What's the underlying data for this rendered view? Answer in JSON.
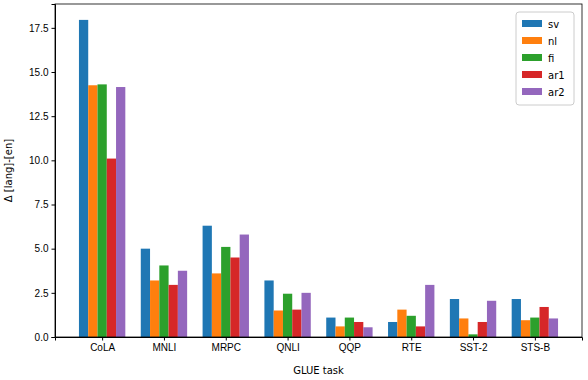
{
  "chart_data": {
    "type": "bar",
    "x_label": "GLUE task",
    "y_label": "Δ [lang]-[en]",
    "categories": [
      "CoLA",
      "MNLI",
      "MRPC",
      "QNLI",
      "QQP",
      "RTE",
      "SST-2",
      "STS-B"
    ],
    "series": [
      {
        "name": "sv",
        "color": "#1f77b4",
        "values": [
          17.95,
          5.0,
          6.3,
          3.2,
          1.1,
          0.85,
          2.15,
          2.15
        ]
      },
      {
        "name": "nl",
        "color": "#ff7f0e",
        "values": [
          14.25,
          3.2,
          3.6,
          1.5,
          0.6,
          1.55,
          1.05,
          0.95
        ]
      },
      {
        "name": "fi",
        "color": "#2ca02c",
        "values": [
          14.3,
          4.05,
          5.1,
          2.45,
          1.1,
          1.2,
          0.15,
          1.1
        ]
      },
      {
        "name": "ar1",
        "color": "#d62728",
        "values": [
          10.1,
          2.95,
          4.5,
          1.55,
          0.85,
          0.6,
          0.85,
          1.7
        ]
      },
      {
        "name": "ar2",
        "color": "#9467bd",
        "values": [
          14.15,
          3.75,
          5.8,
          2.5,
          0.55,
          2.95,
          2.05,
          1.05
        ]
      }
    ],
    "ylim": [
      0,
      18.85
    ],
    "yticks": [
      {
        "value": 0,
        "label": "0.0"
      },
      {
        "value": 2.5,
        "label": "2.5"
      },
      {
        "value": 5,
        "label": "5.0"
      },
      {
        "value": 7.5,
        "label": "7.5"
      },
      {
        "value": 10,
        "label": "10.0"
      },
      {
        "value": 12.5,
        "label": "12.5"
      },
      {
        "value": 15,
        "label": "15.0"
      },
      {
        "value": 17.5,
        "label": "17.5"
      }
    ],
    "legend": "upper right",
    "grid": false
  }
}
